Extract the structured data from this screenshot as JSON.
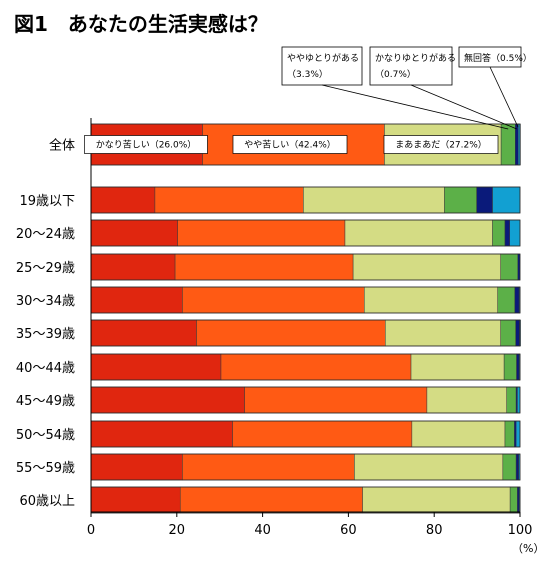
{
  "title": "図1　あなたの生活実感は？",
  "chart_data": {
    "type": "bar",
    "orientation": "horizontal",
    "stacked": true,
    "title": "図1　あなたの生活実感は？",
    "xlabel": "",
    "ylabel": "",
    "unit": "（%）",
    "xlim": [
      0,
      100
    ],
    "xticks": [
      0,
      20,
      40,
      60,
      80,
      100
    ],
    "grid": false,
    "categories": [
      "全体",
      "19歳以下",
      "20〜24歳",
      "25〜29歳",
      "30〜34歳",
      "35〜39歳",
      "40〜44歳",
      "45〜49歳",
      "50〜54歳",
      "55〜59歳",
      "60歳以上"
    ],
    "series": [
      {
        "name": "かなり苦しい",
        "color": "#e0260f",
        "values": [
          26.0,
          14.9,
          20.2,
          19.6,
          21.3,
          24.6,
          30.3,
          35.8,
          33.0,
          21.3,
          20.8
        ]
      },
      {
        "name": "やや苦しい",
        "color": "#ff5a14",
        "values": [
          42.4,
          34.6,
          39.0,
          41.5,
          42.4,
          44.0,
          44.3,
          42.5,
          41.8,
          40.1,
          42.5
        ]
      },
      {
        "name": "まあまあだ",
        "color": "#d4dc84",
        "values": [
          27.2,
          32.9,
          34.4,
          34.4,
          31.1,
          26.9,
          21.7,
          18.6,
          21.7,
          34.6,
          34.4
        ]
      },
      {
        "name": "ややゆとりがある",
        "color": "#5cb048",
        "values": [
          3.3,
          7.5,
          2.9,
          4.0,
          4.0,
          3.5,
          2.9,
          2.2,
          2.2,
          3.1,
          1.7
        ]
      },
      {
        "name": "かなりゆとりがある",
        "color": "#0a1a7a",
        "values": [
          0.7,
          3.7,
          1.1,
          0.5,
          1.0,
          0.9,
          0.6,
          0.3,
          0.4,
          0.6,
          0.4
        ]
      },
      {
        "name": "無回答",
        "color": "#12a0d2",
        "values": [
          0.5,
          6.4,
          2.4,
          0.0,
          0.2,
          0.1,
          0.2,
          0.6,
          0.9,
          0.3,
          0.2
        ]
      }
    ],
    "data_labels": {
      "かなり苦しい": "かなり苦しい（26.0%）",
      "やや苦しい": "やや苦しい（42.4%）",
      "まあまあだ": "まあまあだ（27.2%）",
      "ややゆとりがある": [
        "ややゆとりがある",
        "（3.3%）"
      ],
      "かなりゆとりがある": [
        "かなりゆとりがある",
        "（0.7%）"
      ],
      "無回答": "無回答（0.5%）"
    }
  }
}
